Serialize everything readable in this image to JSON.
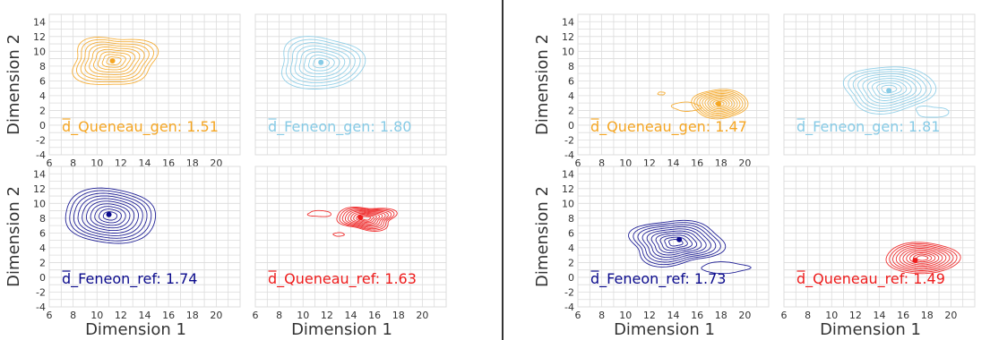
{
  "figure": {
    "colors": {
      "orange": "#f5a623",
      "skyblue": "#87cbe6",
      "navy": "#0a0a8c",
      "red": "#ee1c1c",
      "grid": "#dcdcdc",
      "axis_text": "#333333",
      "divider": "#000000"
    }
  },
  "chart_data": [
    {
      "type": "contour",
      "group": "left",
      "position": "top-left",
      "xlim": [
        6,
        22
      ],
      "ylim": [
        -4,
        15
      ],
      "xticks": [
        "6",
        "8",
        "10",
        "12",
        "14",
        "16",
        "18",
        "20"
      ],
      "yticks": [
        "-4",
        "-2",
        "0",
        "2",
        "4",
        "6",
        "8",
        "10",
        "12",
        "14"
      ],
      "xlabel": "",
      "ylabel": "Dimension 2",
      "color": "orange",
      "label": "d_Queneau_gen: 1.51",
      "centroid": [
        11.3,
        8.7
      ],
      "blobs": [
        {
          "cx": 11.4,
          "cy": 8.7,
          "rx": 3.6,
          "ry": 3.3,
          "levels": 9
        }
      ]
    },
    {
      "type": "contour",
      "group": "left",
      "position": "top-right",
      "xlim": [
        6,
        22
      ],
      "ylim": [
        -4,
        15
      ],
      "xticks": [],
      "yticks": [],
      "xlabel": "",
      "ylabel": "",
      "color": "skyblue",
      "label": "d_Feneon_gen: 1.80",
      "centroid": [
        11.5,
        8.5
      ],
      "blobs": [
        {
          "cx": 11.5,
          "cy": 8.4,
          "rx": 3.7,
          "ry": 3.4,
          "levels": 8
        }
      ]
    },
    {
      "type": "contour",
      "group": "left",
      "position": "bottom-left",
      "xlim": [
        6,
        22
      ],
      "ylim": [
        -4,
        15
      ],
      "xticks": [
        "6",
        "8",
        "10",
        "12",
        "14",
        "16",
        "18",
        "20"
      ],
      "yticks": [
        "-4",
        "-2",
        "0",
        "2",
        "4",
        "6",
        "8",
        "10",
        "12",
        "14"
      ],
      "xlabel": "Dimension 1",
      "ylabel": "Dimension 2",
      "color": "navy",
      "label": "d_Feneon_ref: 1.74",
      "centroid": [
        11.0,
        8.5
      ],
      "blobs": [
        {
          "cx": 11.1,
          "cy": 8.3,
          "rx": 3.9,
          "ry": 3.7,
          "levels": 10
        }
      ]
    },
    {
      "type": "contour",
      "group": "left",
      "position": "bottom-right",
      "xlim": [
        6,
        22
      ],
      "ylim": [
        -4,
        15
      ],
      "xticks": [
        "6",
        "8",
        "10",
        "12",
        "14",
        "16",
        "18",
        "20"
      ],
      "yticks": [],
      "xlabel": "Dimension 1",
      "ylabel": "",
      "color": "red",
      "label": "d_Queneau_ref: 1.63",
      "centroid": [
        14.8,
        8.1
      ],
      "blobs": [
        {
          "cx": 15.3,
          "cy": 8.0,
          "rx": 2.4,
          "ry": 1.6,
          "levels": 10
        },
        {
          "cx": 11.4,
          "cy": 8.6,
          "rx": 1.0,
          "ry": 0.4,
          "levels": 1
        },
        {
          "cx": 13.0,
          "cy": 5.8,
          "rx": 0.45,
          "ry": 0.25,
          "levels": 1
        }
      ]
    },
    {
      "type": "contour",
      "group": "right",
      "position": "top-left",
      "xlim": [
        6,
        22
      ],
      "ylim": [
        -4,
        15
      ],
      "xticks": [
        "6",
        "8",
        "10",
        "12",
        "14",
        "16",
        "18",
        "20"
      ],
      "yticks": [
        "-4",
        "-2",
        "0",
        "2",
        "4",
        "6",
        "8",
        "10",
        "12",
        "14"
      ],
      "xlabel": "",
      "ylabel": "Dimension 2",
      "color": "orange",
      "label": "d_Queneau_gen: 1.47",
      "centroid": [
        17.8,
        2.9
      ],
      "blobs": [
        {
          "cx": 17.9,
          "cy": 2.9,
          "rx": 2.3,
          "ry": 2.0,
          "levels": 10
        },
        {
          "cx": 15.1,
          "cy": 2.5,
          "rx": 1.2,
          "ry": 0.6,
          "levels": 1
        },
        {
          "cx": 13.0,
          "cy": 4.3,
          "rx": 0.3,
          "ry": 0.2,
          "levels": 1
        }
      ]
    },
    {
      "type": "contour",
      "group": "right",
      "position": "top-right",
      "xlim": [
        6,
        22
      ],
      "ylim": [
        -4,
        15
      ],
      "xticks": [],
      "yticks": [],
      "xlabel": "",
      "ylabel": "",
      "color": "skyblue",
      "label": "d_Feneon_gen: 1.81",
      "centroid": [
        14.8,
        4.7
      ],
      "blobs": [
        {
          "cx": 14.8,
          "cy": 4.9,
          "rx": 3.8,
          "ry": 3.1,
          "levels": 9
        },
        {
          "cx": 18.4,
          "cy": 1.8,
          "rx": 1.3,
          "ry": 0.8,
          "levels": 1
        }
      ]
    },
    {
      "type": "contour",
      "group": "right",
      "position": "bottom-left",
      "xlim": [
        6,
        22
      ],
      "ylim": [
        -4,
        15
      ],
      "xticks": [
        "6",
        "8",
        "10",
        "12",
        "14",
        "16",
        "18",
        "20"
      ],
      "yticks": [
        "-4",
        "-2",
        "0",
        "2",
        "4",
        "6",
        "8",
        "10",
        "12",
        "14"
      ],
      "xlabel": "Dimension 1",
      "ylabel": "Dimension 2",
      "color": "navy",
      "label": "d_Feneon_ref: 1.73",
      "centroid": [
        14.5,
        5.1
      ],
      "blobs": [
        {
          "cx": 14.2,
          "cy": 4.7,
          "rx": 3.9,
          "ry": 3.0,
          "levels": 10
        },
        {
          "cx": 18.3,
          "cy": 1.3,
          "rx": 2.1,
          "ry": 0.7,
          "levels": 1
        }
      ]
    },
    {
      "type": "contour",
      "group": "right",
      "position": "bottom-right",
      "xlim": [
        6,
        22
      ],
      "ylim": [
        -4,
        15
      ],
      "xticks": [
        "6",
        "8",
        "10",
        "12",
        "14",
        "16",
        "18",
        "20"
      ],
      "yticks": [],
      "xlabel": "Dimension 1",
      "ylabel": "",
      "color": "red",
      "label": "d_Queneau_ref: 1.49",
      "centroid": [
        17.0,
        2.3
      ],
      "blobs": [
        {
          "cx": 17.6,
          "cy": 2.6,
          "rx": 3.1,
          "ry": 2.1,
          "levels": 10
        }
      ]
    }
  ]
}
